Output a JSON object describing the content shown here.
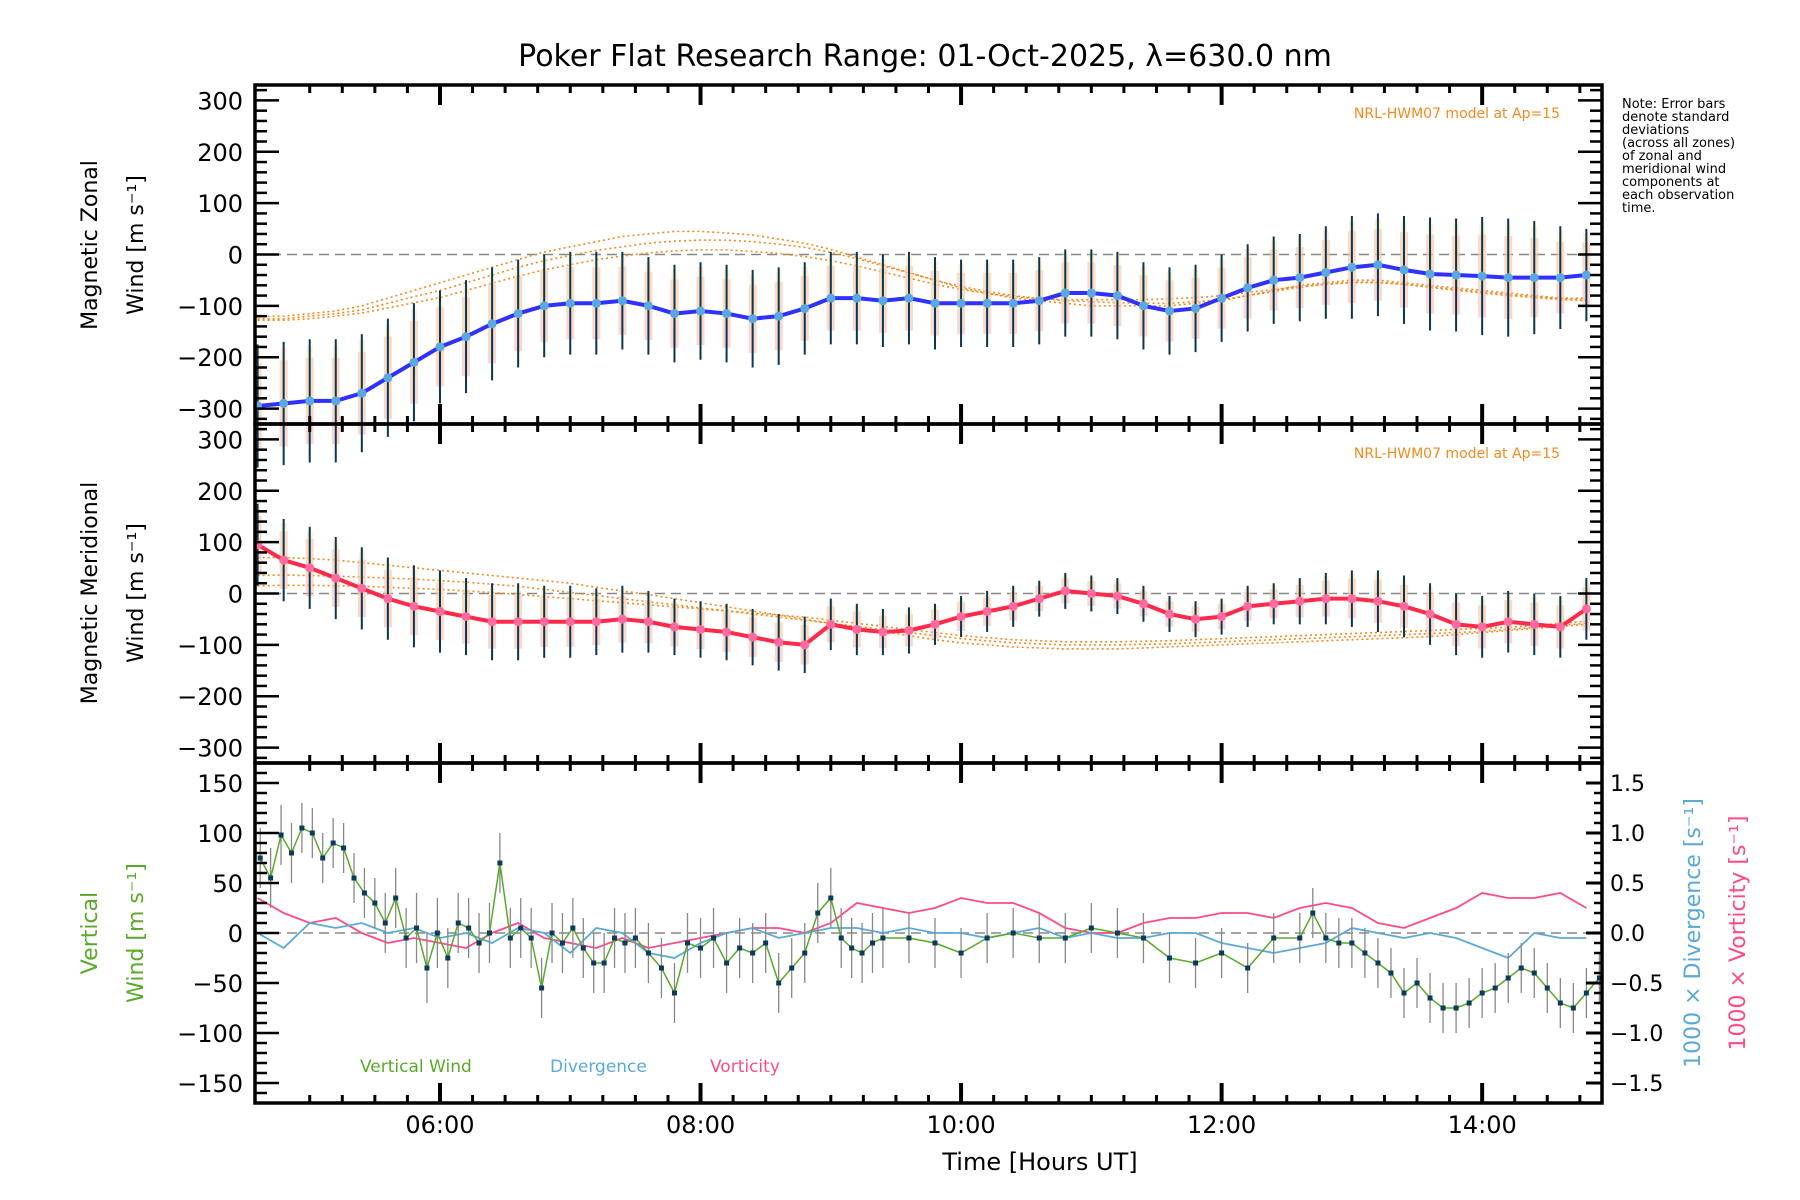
{
  "chart_data": [
    {
      "panel": "zonal",
      "type": "line",
      "title": "Poker Flat Research Range: 01-Oct-2025, λ=630.0 nm",
      "ylabel_line1": "Magnetic Zonal",
      "ylabel_line2": "Wind [m s⁻¹]",
      "ylim": [
        -330,
        330
      ],
      "yticks": [
        -300,
        -200,
        -100,
        0,
        100,
        200,
        300
      ],
      "ytick_labels": [
        "−300",
        "−200",
        "−100",
        "0",
        "100",
        "200",
        "300"
      ],
      "model_label": "NRL-HWM07 model at Ap=15",
      "colors": {
        "mean": "#3030ff",
        "marker": "#5aa8e0",
        "errbar": "#0b3550",
        "model": "#f28a1e",
        "zero": "#888888"
      },
      "x_hours": [
        4.6,
        4.8,
        5.0,
        5.2,
        5.4,
        5.6,
        5.8,
        6.0,
        6.2,
        6.4,
        6.6,
        6.8,
        7.0,
        7.2,
        7.4,
        7.6,
        7.8,
        8.0,
        8.2,
        8.4,
        8.6,
        8.8,
        9.0,
        9.2,
        9.4,
        9.6,
        9.8,
        10.0,
        10.2,
        10.4,
        10.6,
        10.8,
        11.0,
        11.2,
        11.4,
        11.6,
        11.8,
        12.0,
        12.2,
        12.4,
        12.6,
        12.8,
        13.0,
        13.2,
        13.4,
        13.6,
        13.8,
        14.0,
        14.2,
        14.4,
        14.6,
        14.8
      ],
      "mean": [
        -295,
        -290,
        -285,
        -285,
        -270,
        -240,
        -210,
        -180,
        -160,
        -135,
        -115,
        -100,
        -95,
        -95,
        -90,
        -100,
        -115,
        -110,
        -115,
        -125,
        -120,
        -105,
        -85,
        -85,
        -90,
        -85,
        -95,
        -95,
        -95,
        -95,
        -90,
        -75,
        -75,
        -80,
        -100,
        -110,
        -105,
        -85,
        -65,
        -50,
        -45,
        -35,
        -25,
        -20,
        -30,
        -38,
        -40,
        -42,
        -45,
        -45,
        -45,
        -40
      ],
      "err": [
        120,
        120,
        120,
        120,
        115,
        115,
        115,
        110,
        110,
        110,
        105,
        100,
        100,
        100,
        95,
        95,
        95,
        95,
        95,
        95,
        95,
        90,
        90,
        90,
        90,
        90,
        90,
        85,
        85,
        85,
        85,
        85,
        85,
        85,
        85,
        85,
        85,
        85,
        85,
        85,
        85,
        90,
        100,
        100,
        105,
        110,
        110,
        115,
        115,
        110,
        100,
        90
      ],
      "model_curves": [
        {
          "name": "model-a",
          "values": [
            -120,
            -120,
            -115,
            -110,
            -100,
            -85,
            -70,
            -55,
            -40,
            -25,
            -10,
            5,
            15,
            25,
            35,
            40,
            45,
            45,
            42,
            38,
            30,
            22,
            10,
            -5,
            -20,
            -35,
            -50,
            -65,
            -75,
            -85,
            -90,
            -95,
            -100,
            -100,
            -100,
            -100,
            -95,
            -90,
            -80,
            -70,
            -60,
            -55,
            -50,
            -50,
            -55,
            -60,
            -65,
            -70,
            -75,
            -80,
            -85,
            -85
          ]
        },
        {
          "name": "model-b",
          "values": [
            -125,
            -125,
            -120,
            -115,
            -108,
            -95,
            -82,
            -70,
            -55,
            -40,
            -25,
            -12,
            -2,
            8,
            15,
            22,
            26,
            28,
            28,
            25,
            20,
            14,
            4,
            -8,
            -22,
            -36,
            -50,
            -62,
            -72,
            -80,
            -86,
            -90,
            -92,
            -94,
            -95,
            -95,
            -92,
            -88,
            -80,
            -72,
            -64,
            -58,
            -54,
            -54,
            -58,
            -64,
            -70,
            -75,
            -80,
            -84,
            -88,
            -90
          ]
        },
        {
          "name": "model-c",
          "values": [
            -128,
            -128,
            -125,
            -120,
            -114,
            -104,
            -94,
            -84,
            -70,
            -56,
            -42,
            -30,
            -20,
            -10,
            -3,
            3,
            7,
            9,
            9,
            6,
            2,
            -4,
            -12,
            -22,
            -34,
            -46,
            -58,
            -68,
            -76,
            -82,
            -86,
            -88,
            -88,
            -88,
            -88,
            -86,
            -84,
            -80,
            -74,
            -68,
            -62,
            -58,
            -55,
            -55,
            -58,
            -63,
            -68,
            -73,
            -78,
            -82,
            -86,
            -88
          ]
        }
      ]
    },
    {
      "panel": "meridional",
      "type": "line",
      "ylabel_line1": "Magnetic Meridional",
      "ylabel_line2": "Wind [m s⁻¹]",
      "ylim": [
        -330,
        330
      ],
      "yticks": [
        -300,
        -200,
        -100,
        0,
        100,
        200,
        300
      ],
      "ytick_labels": [
        "−300",
        "−200",
        "−100",
        "0",
        "100",
        "200",
        "300"
      ],
      "model_label": "NRL-HWM07 model at Ap=15",
      "colors": {
        "mean": "#ff2a4a",
        "marker": "#ff6aa0",
        "errbar": "#0b3550",
        "model": "#f28a1e",
        "zero": "#888888"
      },
      "x_hours": [
        4.6,
        4.8,
        5.0,
        5.2,
        5.4,
        5.6,
        5.8,
        6.0,
        6.2,
        6.4,
        6.6,
        6.8,
        7.0,
        7.2,
        7.4,
        7.6,
        7.8,
        8.0,
        8.2,
        8.4,
        8.6,
        8.8,
        9.0,
        9.2,
        9.4,
        9.6,
        9.8,
        10.0,
        10.2,
        10.4,
        10.6,
        10.8,
        11.0,
        11.2,
        11.4,
        11.6,
        11.8,
        12.0,
        12.2,
        12.4,
        12.6,
        12.8,
        13.0,
        13.2,
        13.4,
        13.6,
        13.8,
        14.0,
        14.2,
        14.4,
        14.6,
        14.8
      ],
      "mean": [
        95,
        65,
        50,
        30,
        10,
        -10,
        -25,
        -35,
        -45,
        -55,
        -55,
        -55,
        -55,
        -55,
        -50,
        -55,
        -65,
        -70,
        -75,
        -85,
        -95,
        -100,
        -60,
        -70,
        -75,
        -72,
        -60,
        -45,
        -35,
        -25,
        -10,
        5,
        0,
        -5,
        -20,
        -40,
        -50,
        -45,
        -25,
        -20,
        -15,
        -10,
        -10,
        -15,
        -25,
        -40,
        -60,
        -65,
        -55,
        -60,
        -65,
        -30
      ],
      "err": [
        80,
        80,
        80,
        80,
        80,
        80,
        80,
        80,
        75,
        75,
        75,
        70,
        70,
        65,
        65,
        60,
        55,
        55,
        55,
        55,
        55,
        55,
        50,
        50,
        45,
        45,
        40,
        40,
        40,
        40,
        35,
        35,
        35,
        35,
        35,
        35,
        35,
        35,
        40,
        40,
        45,
        50,
        55,
        60,
        60,
        60,
        60,
        60,
        60,
        60,
        60,
        60
      ],
      "model_curves": [
        {
          "name": "model-a",
          "values": [
            70,
            70,
            68,
            65,
            60,
            55,
            50,
            45,
            40,
            35,
            30,
            25,
            20,
            12,
            5,
            -2,
            -10,
            -18,
            -26,
            -34,
            -42,
            -50,
            -58,
            -66,
            -74,
            -82,
            -90,
            -96,
            -100,
            -104,
            -106,
            -108,
            -108,
            -108,
            -106,
            -104,
            -102,
            -100,
            -98,
            -96,
            -94,
            -92,
            -90,
            -88,
            -86,
            -84,
            -80,
            -76,
            -72,
            -68,
            -64,
            -60
          ]
        },
        {
          "name": "model-b",
          "values": [
            35,
            36,
            35,
            34,
            32,
            30,
            28,
            25,
            22,
            18,
            14,
            8,
            2,
            -4,
            -10,
            -16,
            -22,
            -28,
            -34,
            -40,
            -46,
            -52,
            -58,
            -64,
            -70,
            -76,
            -82,
            -88,
            -92,
            -96,
            -98,
            -100,
            -100,
            -100,
            -99,
            -98,
            -96,
            -94,
            -92,
            -90,
            -88,
            -86,
            -84,
            -82,
            -80,
            -78,
            -76,
            -74,
            -70,
            -66,
            -62,
            -58
          ]
        },
        {
          "name": "model-c",
          "values": [
            15,
            16,
            16,
            15,
            14,
            12,
            10,
            8,
            5,
            2,
            -2,
            -6,
            -10,
            -14,
            -18,
            -22,
            -26,
            -30,
            -34,
            -38,
            -42,
            -46,
            -52,
            -58,
            -64,
            -70,
            -76,
            -82,
            -86,
            -90,
            -92,
            -94,
            -94,
            -94,
            -93,
            -92,
            -90,
            -88,
            -86,
            -84,
            -82,
            -80,
            -78,
            -76,
            -74,
            -72,
            -70,
            -68,
            -66,
            -62,
            -58,
            -54
          ]
        }
      ]
    },
    {
      "panel": "vertical",
      "type": "line",
      "xlabel": "Time [Hours UT]",
      "ylabel_line1": "Vertical",
      "ylabel_line2": "Wind [m s⁻¹]",
      "y2label_div": "1000 × Divergence [s⁻¹]",
      "y2label_vort": "1000 × Vorticity [s⁻¹]",
      "ylim": [
        -170,
        170
      ],
      "yticks": [
        -150,
        -100,
        -50,
        0,
        50,
        100,
        150
      ],
      "ytick_labels": [
        "−150",
        "−100",
        "−50",
        "0",
        "50",
        "100",
        "150"
      ],
      "y2lim": [
        -1.7,
        1.7
      ],
      "y2ticks": [
        -1.5,
        -1.0,
        -0.5,
        0.0,
        0.5,
        1.0,
        1.5
      ],
      "y2tick_labels": [
        "−1.5",
        "−1.0",
        "−0.5",
        "0.0",
        "0.5",
        "1.0",
        "1.5"
      ],
      "xlim_hours": [
        4.58,
        14.92
      ],
      "xticks_hours": [
        6,
        8,
        10,
        12,
        14
      ],
      "xtick_labels": [
        "06:00",
        "08:00",
        "10:00",
        "12:00",
        "14:00"
      ],
      "legend": [
        {
          "label": "Vertical Wind",
          "color": "#5aaa2a"
        },
        {
          "label": "Divergence",
          "color": "#5aaad8"
        },
        {
          "label": "Vorticity",
          "color": "#ff4a8a"
        }
      ],
      "colors": {
        "wind": "#5aaa2a",
        "marker": "#0b3a5a",
        "errbar": "#888888",
        "div": "#5aaad8",
        "vort": "#ff4a8a",
        "zero": "#888888"
      },
      "wind_x_hours": [
        4.62,
        4.7,
        4.78,
        4.86,
        4.94,
        5.02,
        5.1,
        5.18,
        5.26,
        5.34,
        5.42,
        5.5,
        5.58,
        5.66,
        5.74,
        5.82,
        5.9,
        5.98,
        6.06,
        6.14,
        6.22,
        6.3,
        6.38,
        6.46,
        6.54,
        6.62,
        6.7,
        6.78,
        6.86,
        6.94,
        7.02,
        7.1,
        7.18,
        7.26,
        7.34,
        7.42,
        7.5,
        7.6,
        7.7,
        7.8,
        7.9,
        8.0,
        8.1,
        8.2,
        8.3,
        8.4,
        8.5,
        8.6,
        8.7,
        8.8,
        8.9,
        9.0,
        9.08,
        9.16,
        9.24,
        9.32,
        9.4,
        9.6,
        9.8,
        10.0,
        10.2,
        10.4,
        10.6,
        10.8,
        11.0,
        11.2,
        11.4,
        11.6,
        11.8,
        12.0,
        12.2,
        12.4,
        12.6,
        12.7,
        12.8,
        12.9,
        13.0,
        13.1,
        13.2,
        13.3,
        13.4,
        13.5,
        13.6,
        13.7,
        13.8,
        13.9,
        14.0,
        14.1,
        14.2,
        14.3,
        14.4,
        14.5,
        14.6,
        14.7,
        14.8,
        14.9
      ],
      "wind": [
        75,
        55,
        98,
        80,
        105,
        100,
        75,
        90,
        85,
        55,
        40,
        30,
        10,
        35,
        -5,
        5,
        -35,
        0,
        -25,
        10,
        5,
        -10,
        0,
        70,
        -5,
        5,
        -5,
        -55,
        0,
        -10,
        5,
        -15,
        -30,
        -30,
        -5,
        -10,
        -5,
        -20,
        -35,
        -60,
        -10,
        -15,
        -5,
        -30,
        -15,
        -20,
        -10,
        -50,
        -35,
        -20,
        20,
        35,
        -5,
        -15,
        -20,
        -10,
        -5,
        -5,
        -10,
        -20,
        -5,
        0,
        -5,
        -5,
        5,
        0,
        -5,
        -25,
        -30,
        -20,
        -35,
        -5,
        -5,
        20,
        -5,
        -10,
        -10,
        -20,
        -30,
        -40,
        -60,
        -50,
        -65,
        -75,
        -75,
        -70,
        -60,
        -55,
        -45,
        -35,
        -40,
        -55,
        -70,
        -75,
        -60,
        -45
      ],
      "wind_err": [
        30,
        30,
        30,
        30,
        25,
        25,
        25,
        25,
        25,
        25,
        25,
        25,
        30,
        30,
        30,
        35,
        35,
        35,
        30,
        30,
        30,
        30,
        30,
        30,
        30,
        30,
        30,
        30,
        30,
        30,
        30,
        30,
        30,
        30,
        30,
        30,
        30,
        30,
        30,
        30,
        30,
        30,
        30,
        30,
        30,
        30,
        30,
        30,
        30,
        30,
        30,
        30,
        30,
        30,
        30,
        30,
        30,
        25,
        25,
        25,
        25,
        25,
        25,
        25,
        25,
        25,
        25,
        25,
        25,
        25,
        25,
        25,
        25,
        25,
        25,
        25,
        25,
        25,
        25,
        25,
        25,
        25,
        25,
        25,
        25,
        25,
        25,
        25,
        25,
        25,
        25,
        25,
        25,
        25,
        25,
        25
      ],
      "div_x_hours": [
        4.6,
        4.8,
        5.0,
        5.2,
        5.4,
        5.6,
        5.8,
        6.0,
        6.2,
        6.4,
        6.6,
        6.8,
        7.0,
        7.2,
        7.4,
        7.6,
        7.8,
        8.0,
        8.2,
        8.4,
        8.6,
        8.8,
        9.0,
        9.2,
        9.4,
        9.6,
        9.8,
        10.0,
        10.2,
        10.4,
        10.6,
        10.8,
        11.0,
        11.2,
        11.4,
        11.6,
        11.8,
        12.0,
        12.2,
        12.4,
        12.6,
        12.8,
        13.0,
        13.2,
        13.4,
        13.6,
        13.8,
        14.0,
        14.2,
        14.4,
        14.6,
        14.8
      ],
      "divergence": [
        0.0,
        -0.15,
        0.1,
        0.05,
        0.1,
        0.0,
        0.05,
        -0.05,
        0.0,
        -0.1,
        0.05,
        0.0,
        -0.2,
        0.05,
        0.0,
        -0.2,
        -0.25,
        -0.1,
        0.0,
        0.05,
        -0.05,
        0.0,
        0.05,
        0.05,
        0.0,
        0.05,
        0.0,
        0.0,
        -0.05,
        0.0,
        0.05,
        -0.05,
        0.0,
        -0.05,
        -0.05,
        0.0,
        0.0,
        -0.1,
        -0.15,
        -0.2,
        -0.15,
        -0.1,
        0.05,
        0.0,
        -0.05,
        0.0,
        -0.05,
        -0.15,
        -0.25,
        0.0,
        -0.05,
        -0.05
      ],
      "vorticity": [
        0.35,
        0.2,
        0.1,
        0.15,
        0.0,
        -0.1,
        -0.05,
        -0.1,
        -0.15,
        0.0,
        0.1,
        -0.05,
        -0.1,
        -0.15,
        -0.05,
        -0.15,
        -0.1,
        -0.05,
        0.0,
        0.05,
        0.05,
        0.0,
        0.1,
        0.3,
        0.25,
        0.2,
        0.25,
        0.35,
        0.3,
        0.3,
        0.2,
        0.05,
        0.0,
        0.0,
        0.1,
        0.15,
        0.15,
        0.2,
        0.2,
        0.15,
        0.25,
        0.3,
        0.25,
        0.1,
        0.05,
        0.15,
        0.25,
        0.4,
        0.35,
        0.35,
        0.4,
        0.25
      ]
    }
  ],
  "note": [
    "Note: Error bars",
    "denote standard",
    "deviations",
    "(across all zones)",
    "of zonal and",
    "meridional wind",
    "components at",
    "each observation",
    "time."
  ]
}
